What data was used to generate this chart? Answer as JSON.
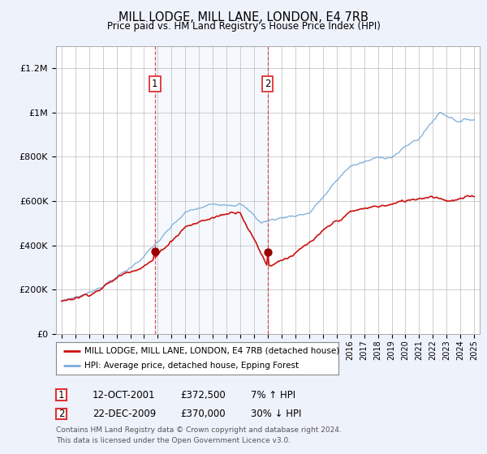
{
  "title": "MILL LODGE, MILL LANE, LONDON, E4 7RB",
  "subtitle": "Price paid vs. HM Land Registry's House Price Index (HPI)",
  "background_color": "#eef2fb",
  "plot_bg_color": "#ffffff",
  "ylabel_ticks": [
    "£0",
    "£200K",
    "£400K",
    "£600K",
    "£800K",
    "£1M",
    "£1.2M"
  ],
  "ytick_values": [
    0,
    200000,
    400000,
    600000,
    800000,
    1000000,
    1200000
  ],
  "ylim": [
    0,
    1300000
  ],
  "sale1_x": 2001.79,
  "sale1_y": 372500,
  "sale2_x": 2009.98,
  "sale2_y": 370000,
  "vline_color": "#dd3333",
  "vline_shade_color": "#d8e8f8",
  "legend_entries": [
    "MILL LODGE, MILL LANE, LONDON, E4 7RB (detached house)",
    "HPI: Average price, detached house, Epping Forest"
  ],
  "table_rows": [
    {
      "num": "1",
      "date": "12-OCT-2001",
      "price": "£372,500",
      "hpi": "7% ↑ HPI"
    },
    {
      "num": "2",
      "date": "22-DEC-2009",
      "price": "£370,000",
      "hpi": "30% ↓ HPI"
    }
  ],
  "footer": "Contains HM Land Registry data © Crown copyright and database right 2024.\nThis data is licensed under the Open Government Licence v3.0.",
  "red_line_color": "#cc1111",
  "blue_line_color": "#7aabda",
  "sale_dot_color": "#990000",
  "xlim_start": 1994.6,
  "xlim_end": 2025.4
}
